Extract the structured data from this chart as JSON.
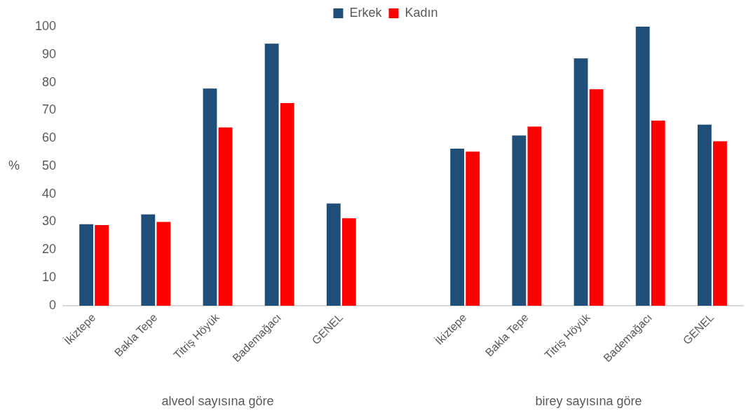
{
  "chart_data": {
    "type": "bar",
    "ylabel": "%",
    "categories": [
      "İkiztepe",
      "Bakla Tepe",
      "Titriş Höyük",
      "Bademağacı",
      "GENEL",
      null,
      "İkiztepe",
      "Bakla Tepe",
      "Titriş Höyük",
      "Bademağacı",
      "GENEL"
    ],
    "series": [
      {
        "name": "Erkek",
        "color": "#1f4e79",
        "values": [
          29.2,
          32.7,
          77.8,
          93.9,
          36.6,
          null,
          56.3,
          61.0,
          88.6,
          100,
          64.9
        ]
      },
      {
        "name": "Kadın",
        "color": "#ff0000",
        "values": [
          28.9,
          30.0,
          63.9,
          72.6,
          31.3,
          null,
          55.2,
          64.2,
          77.6,
          66.3,
          58.9
        ]
      }
    ],
    "ylim": [
      0,
      100
    ],
    "yticks": [
      0,
      10,
      20,
      30,
      40,
      50,
      60,
      70,
      80,
      90,
      100
    ],
    "grid": false,
    "legend": "top",
    "annotations": [
      "alveol sayısına göre",
      "birey sayısına göre"
    ]
  }
}
